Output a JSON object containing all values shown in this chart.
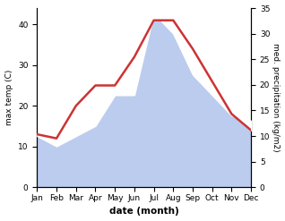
{
  "months": [
    "Jan",
    "Feb",
    "Mar",
    "Apr",
    "May",
    "Jun",
    "Jul",
    "Aug",
    "Sep",
    "Oct",
    "Nov",
    "Dec"
  ],
  "temp": [
    13,
    12,
    20,
    25,
    25,
    32,
    41,
    41,
    34,
    26,
    18,
    14
  ],
  "precip": [
    10,
    8,
    10,
    12,
    18,
    18,
    34,
    30,
    22,
    18,
    14,
    13
  ],
  "temp_color": "#cc3333",
  "precip_color": "#bbccee",
  "ylabel_left": "max temp (C)",
  "ylabel_right": "med. precipitation (kg/m2)",
  "xlabel": "date (month)",
  "ylim_left": [
    0,
    44
  ],
  "ylim_right": [
    0,
    35
  ],
  "yticks_left": [
    0,
    10,
    20,
    30,
    40
  ],
  "yticks_right": [
    0,
    5,
    10,
    15,
    20,
    25,
    30,
    35
  ],
  "temp_linewidth": 1.8,
  "background_color": "#ffffff"
}
